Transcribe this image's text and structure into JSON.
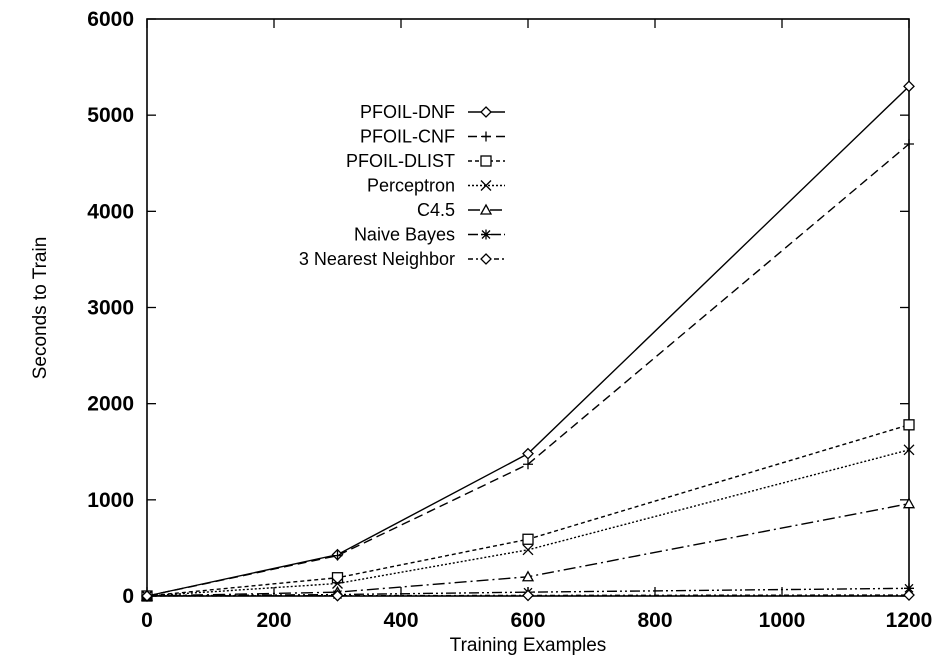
{
  "chart_data": {
    "type": "line",
    "xlabel": "Training Examples",
    "ylabel": "Seconds to Train",
    "xlim": [
      0,
      1200
    ],
    "ylim": [
      0,
      6000
    ],
    "xticks": [
      0,
      200,
      400,
      600,
      800,
      1000,
      1200
    ],
    "yticks": [
      0,
      1000,
      2000,
      3000,
      4000,
      5000,
      6000
    ],
    "grid": false,
    "legend_position": "top-left",
    "x": [
      0,
      300,
      600,
      1200
    ],
    "series": [
      {
        "name": "PFOIL-DNF",
        "values": [
          0,
          430,
          1480,
          5300
        ],
        "marker": "diamond",
        "dash": ""
      },
      {
        "name": "PFOIL-CNF",
        "values": [
          0,
          420,
          1370,
          4700
        ],
        "marker": "plus",
        "dash": "9,5"
      },
      {
        "name": "PFOIL-DLIST",
        "values": [
          0,
          190,
          590,
          1780
        ],
        "marker": "square",
        "dash": "4,3"
      },
      {
        "name": "Perceptron",
        "values": [
          0,
          130,
          480,
          1520
        ],
        "marker": "x",
        "dash": "2,2"
      },
      {
        "name": "C4.5",
        "values": [
          0,
          40,
          200,
          960
        ],
        "marker": "triangle",
        "dash": "12,4,2,4"
      },
      {
        "name": "Naive Bayes",
        "values": [
          0,
          15,
          40,
          80
        ],
        "marker": "star",
        "dash": "10,3,2,3,2,3"
      },
      {
        "name": "3 Nearest Neighbor",
        "values": [
          0,
          3,
          6,
          10
        ],
        "marker": "diamond",
        "dash": "5,3,2,3"
      }
    ]
  }
}
